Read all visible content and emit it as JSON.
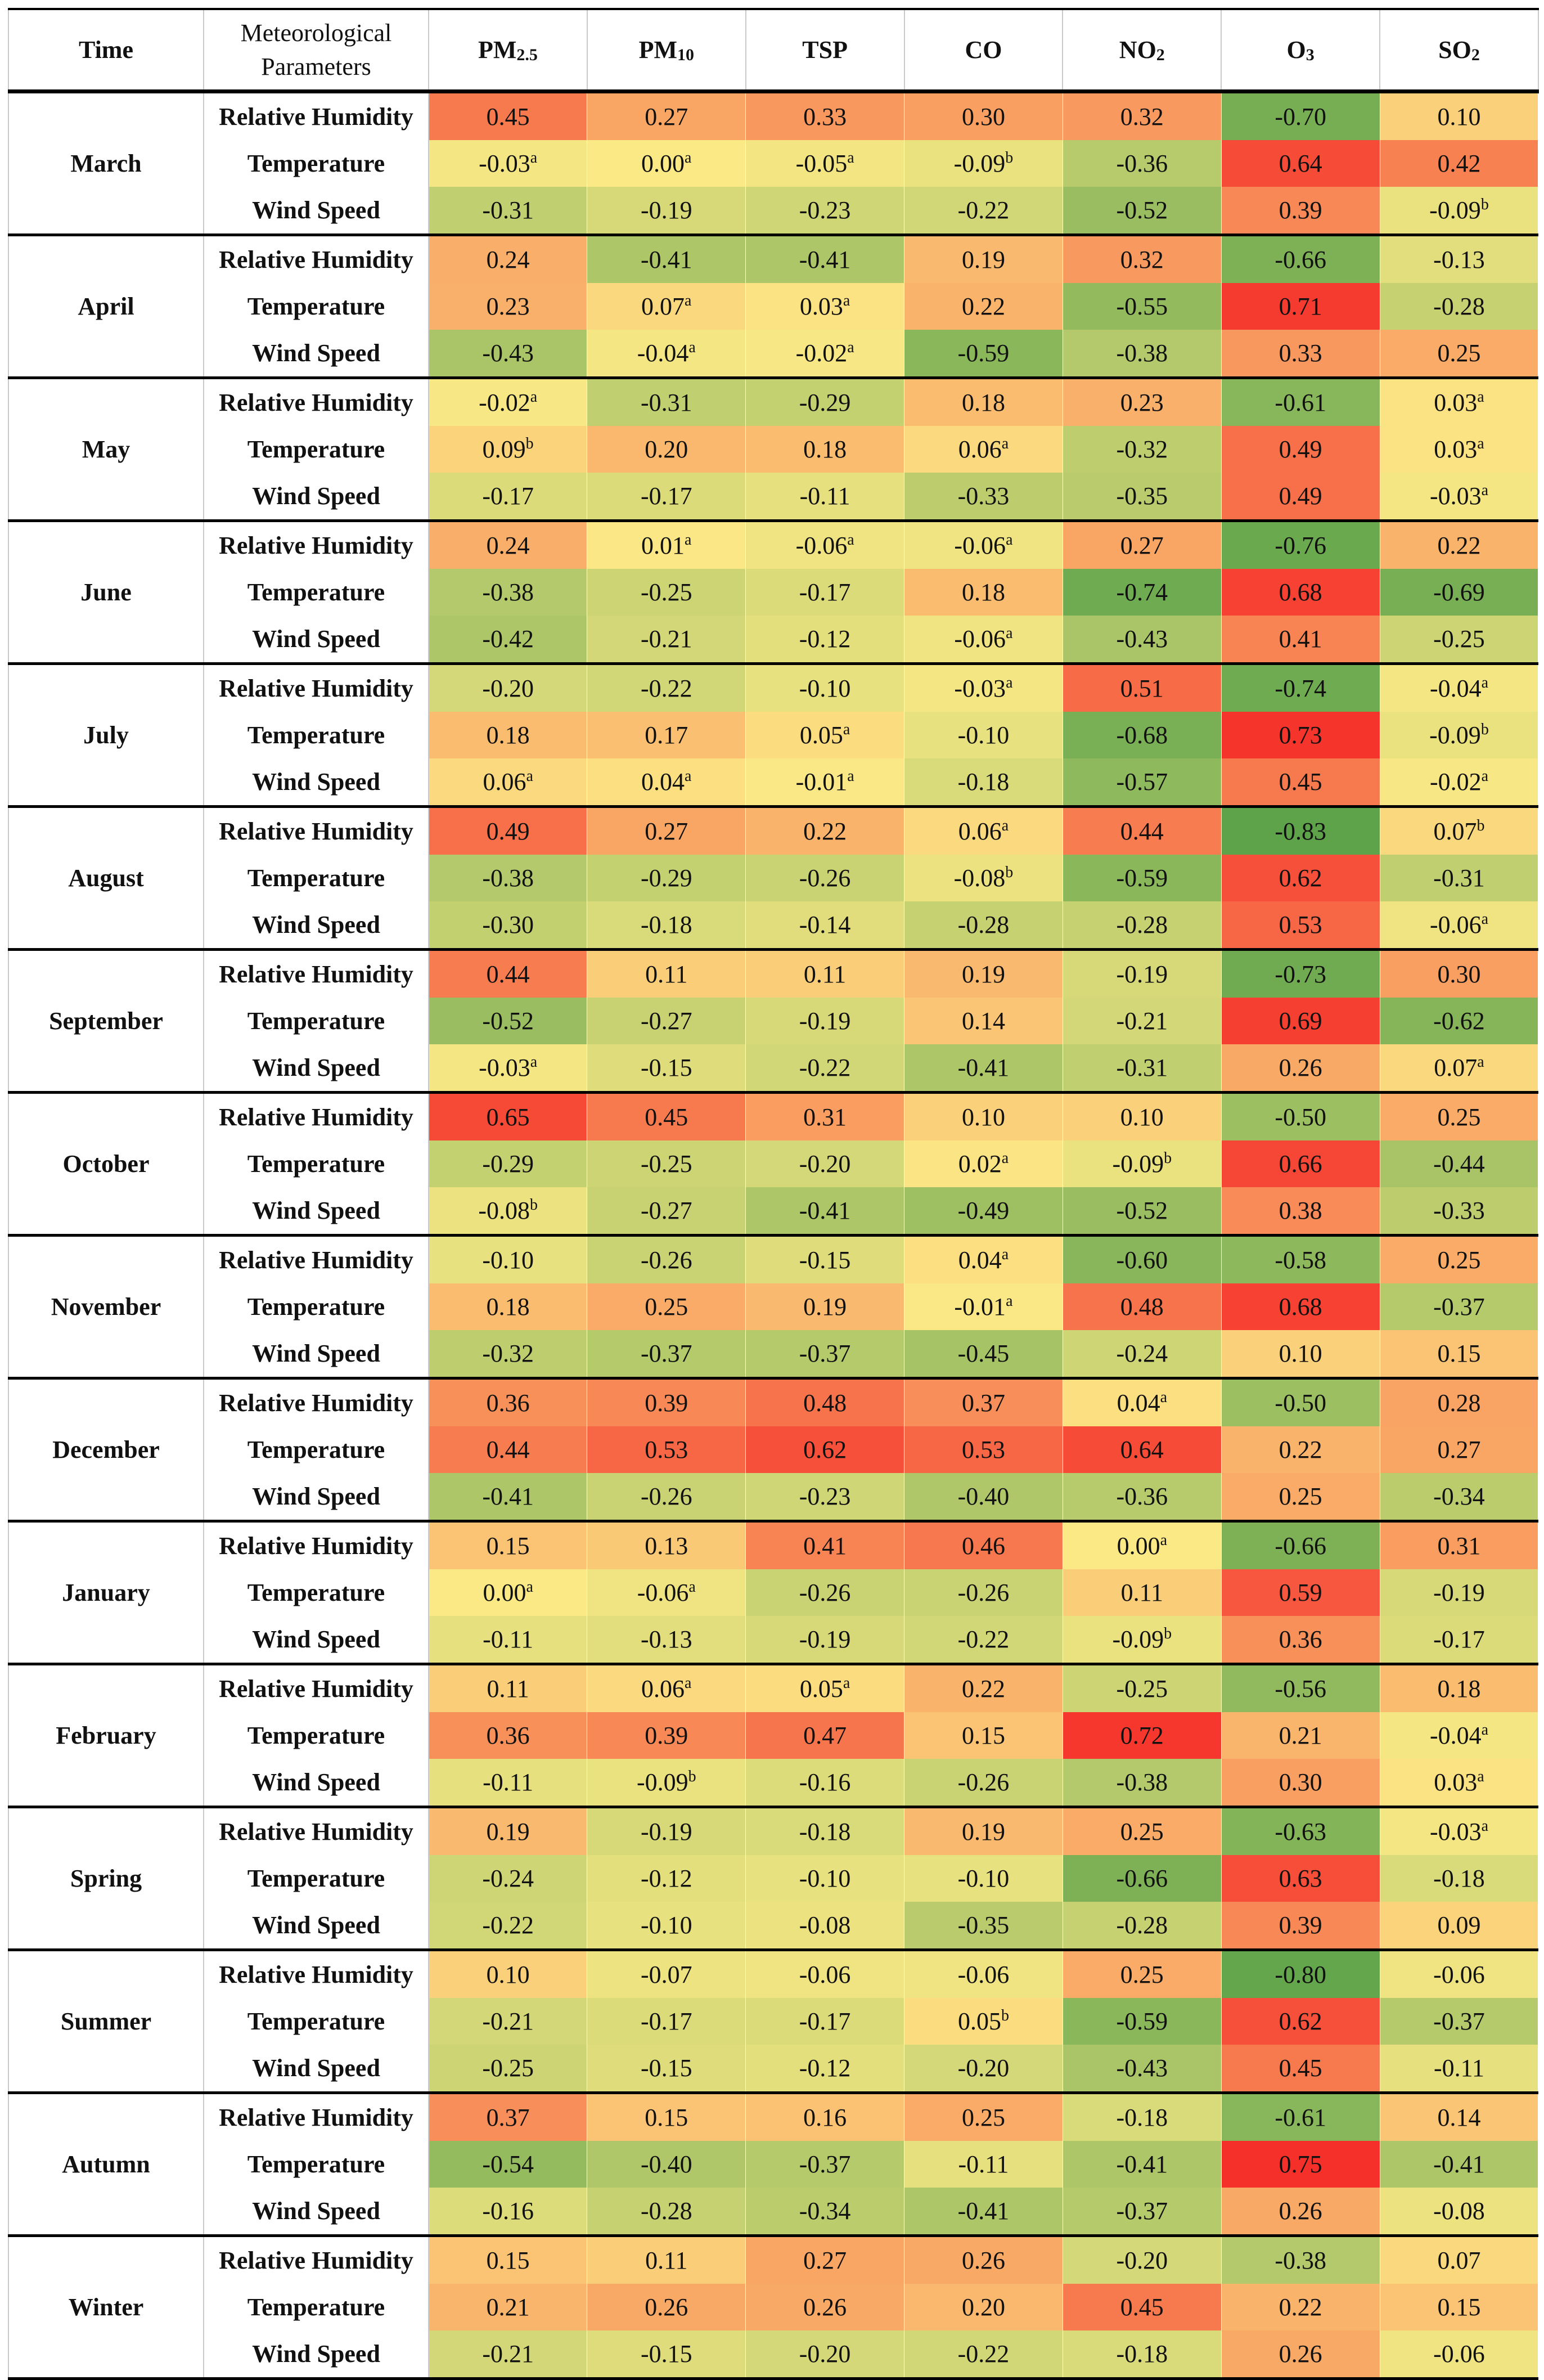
{
  "chart_data": {
    "type": "heatmap",
    "title": "",
    "headers": {
      "time": "Time",
      "parameters": "Meteorological Parameters",
      "pollutants": [
        {
          "base": "PM",
          "sub": "2.5"
        },
        {
          "base": "PM",
          "sub": "10"
        },
        {
          "base": "TSP",
          "sub": ""
        },
        {
          "base": "CO",
          "sub": ""
        },
        {
          "base": "NO",
          "sub": "2"
        },
        {
          "base": "O",
          "sub": "3"
        },
        {
          "base": "SO",
          "sub": "2"
        }
      ]
    },
    "parameters": [
      "Relative Humidity",
      "Temperature",
      "Wind Speed"
    ],
    "color_scale": {
      "min": -0.83,
      "max": 0.75,
      "neg": "#5ea34a",
      "mid": "#fbe986",
      "pos": "#f5302a"
    },
    "groups": [
      {
        "time": "March",
        "rows": [
          [
            "0.45",
            "0.27",
            "0.33",
            "0.30",
            "0.32",
            "-0.70",
            "0.10"
          ],
          [
            "-0.03a",
            "0.00a",
            "-0.05a",
            "-0.09b",
            "-0.36",
            "0.64",
            "0.42"
          ],
          [
            "-0.31",
            "-0.19",
            "-0.23",
            "-0.22",
            "-0.52",
            "0.39",
            "-0.09b"
          ]
        ]
      },
      {
        "time": "April",
        "rows": [
          [
            "0.24",
            "-0.41",
            "-0.41",
            "0.19",
            "0.32",
            "-0.66",
            "-0.13"
          ],
          [
            "0.23",
            "0.07a",
            "0.03a",
            "0.22",
            "-0.55",
            "0.71",
            "-0.28"
          ],
          [
            "-0.43",
            "-0.04a",
            "-0.02a",
            "-0.59",
            "-0.38",
            "0.33",
            "0.25"
          ]
        ]
      },
      {
        "time": "May",
        "rows": [
          [
            "-0.02a",
            "-0.31",
            "-0.29",
            "0.18",
            "0.23",
            "-0.61",
            "0.03a"
          ],
          [
            "0.09b",
            "0.20",
            "0.18",
            "0.06a",
            "-0.32",
            "0.49",
            "0.03a"
          ],
          [
            "-0.17",
            "-0.17",
            "-0.11",
            "-0.33",
            "-0.35",
            "0.49",
            "-0.03a"
          ]
        ]
      },
      {
        "time": "June",
        "rows": [
          [
            "0.24",
            "0.01a",
            "-0.06a",
            "-0.06a",
            "0.27",
            "-0.76",
            "0.22"
          ],
          [
            "-0.38",
            "-0.25",
            "-0.17",
            "0.18",
            "-0.74",
            "0.68",
            "-0.69"
          ],
          [
            "-0.42",
            "-0.21",
            "-0.12",
            "-0.06a",
            "-0.43",
            "0.41",
            "-0.25"
          ]
        ]
      },
      {
        "time": "July",
        "rows": [
          [
            "-0.20",
            "-0.22",
            "-0.10",
            "-0.03a",
            "0.51",
            "-0.74",
            "-0.04a"
          ],
          [
            "0.18",
            "0.17",
            "0.05a",
            "-0.10",
            "-0.68",
            "0.73",
            "-0.09b"
          ],
          [
            "0.06a",
            "0.04a",
            "-0.01a",
            "-0.18",
            "-0.57",
            "0.45",
            "-0.02a"
          ]
        ]
      },
      {
        "time": "August",
        "rows": [
          [
            "0.49",
            "0.27",
            "0.22",
            "0.06a",
            "0.44",
            "-0.83",
            "0.07b"
          ],
          [
            "-0.38",
            "-0.29",
            "-0.26",
            "-0.08b",
            "-0.59",
            "0.62",
            "-0.31"
          ],
          [
            "-0.30",
            "-0.18",
            "-0.14",
            "-0.28",
            "-0.28",
            "0.53",
            "-0.06a"
          ]
        ]
      },
      {
        "time": "September",
        "rows": [
          [
            "0.44",
            "0.11",
            "0.11",
            "0.19",
            "-0.19",
            "-0.73",
            "0.30"
          ],
          [
            "-0.52",
            "-0.27",
            "-0.19",
            "0.14",
            "-0.21",
            "0.69",
            "-0.62"
          ],
          [
            "-0.03a",
            "-0.15",
            "-0.22",
            "-0.41",
            "-0.31",
            "0.26",
            "0.07a"
          ]
        ]
      },
      {
        "time": "October",
        "rows": [
          [
            "0.65",
            "0.45",
            "0.31",
            "0.10",
            "0.10",
            "-0.50",
            "0.25"
          ],
          [
            "-0.29",
            "-0.25",
            "-0.20",
            "0.02a",
            "-0.09b",
            "0.66",
            "-0.44"
          ],
          [
            "-0.08b",
            "-0.27",
            "-0.41",
            "-0.49",
            "-0.52",
            "0.38",
            "-0.33"
          ]
        ]
      },
      {
        "time": "November",
        "rows": [
          [
            "-0.10",
            "-0.26",
            "-0.15",
            "0.04a",
            "-0.60",
            "-0.58",
            "0.25"
          ],
          [
            "0.18",
            "0.25",
            "0.19",
            "-0.01a",
            "0.48",
            "0.68",
            "-0.37"
          ],
          [
            "-0.32",
            "-0.37",
            "-0.37",
            "-0.45",
            "-0.24",
            "0.10",
            "0.15"
          ]
        ]
      },
      {
        "time": "December",
        "rows": [
          [
            "0.36",
            "0.39",
            "0.48",
            "0.37",
            "0.04a",
            "-0.50",
            "0.28"
          ],
          [
            "0.44",
            "0.53",
            "0.62",
            "0.53",
            "0.64",
            "0.22",
            "0.27"
          ],
          [
            "-0.41",
            "-0.26",
            "-0.23",
            "-0.40",
            "-0.36",
            "0.25",
            "-0.34"
          ]
        ]
      },
      {
        "time": "January",
        "rows": [
          [
            "0.15",
            "0.13",
            "0.41",
            "0.46",
            "0.00a",
            "-0.66",
            "0.31"
          ],
          [
            "0.00a",
            "-0.06a",
            "-0.26",
            "-0.26",
            "0.11",
            "0.59",
            "-0.19"
          ],
          [
            "-0.11",
            "-0.13",
            "-0.19",
            "-0.22",
            "-0.09b",
            "0.36",
            "-0.17"
          ]
        ]
      },
      {
        "time": "February",
        "rows": [
          [
            "0.11",
            "0.06a",
            "0.05a",
            "0.22",
            "-0.25",
            "-0.56",
            "0.18"
          ],
          [
            "0.36",
            "0.39",
            "0.47",
            "0.15",
            "0.72",
            "0.21",
            "-0.04a"
          ],
          [
            "-0.11",
            "-0.09b",
            "-0.16",
            "-0.26",
            "-0.38",
            "0.30",
            "0.03a"
          ]
        ]
      },
      {
        "time": "Spring",
        "rows": [
          [
            "0.19",
            "-0.19",
            "-0.18",
            "0.19",
            "0.25",
            "-0.63",
            "-0.03a"
          ],
          [
            "-0.24",
            "-0.12",
            "-0.10",
            "-0.10",
            "-0.66",
            "0.63",
            "-0.18"
          ],
          [
            "-0.22",
            "-0.10",
            "-0.08",
            "-0.35",
            "-0.28",
            "0.39",
            "0.09"
          ]
        ]
      },
      {
        "time": "Summer",
        "rows": [
          [
            "0.10",
            "-0.07",
            "-0.06",
            "-0.06",
            "0.25",
            "-0.80",
            "-0.06"
          ],
          [
            "-0.21",
            "-0.17",
            "-0.17",
            "0.05b",
            "-0.59",
            "0.62",
            "-0.37"
          ],
          [
            "-0.25",
            "-0.15",
            "-0.12",
            "-0.20",
            "-0.43",
            "0.45",
            "-0.11"
          ]
        ]
      },
      {
        "time": "Autumn",
        "rows": [
          [
            "0.37",
            "0.15",
            "0.16",
            "0.25",
            "-0.18",
            "-0.61",
            "0.14"
          ],
          [
            "-0.54",
            "-0.40",
            "-0.37",
            "-0.11",
            "-0.41",
            "0.75",
            "-0.41"
          ],
          [
            "-0.16",
            "-0.28",
            "-0.34",
            "-0.41",
            "-0.37",
            "0.26",
            "-0.08"
          ]
        ]
      },
      {
        "time": "Winter",
        "rows": [
          [
            "0.15",
            "0.11",
            "0.27",
            "0.26",
            "-0.20",
            "-0.38",
            "0.07"
          ],
          [
            "0.21",
            "0.26",
            "0.26",
            "0.20",
            "0.45",
            "0.22",
            "0.15"
          ],
          [
            "-0.21",
            "-0.15",
            "-0.20",
            "-0.22",
            "-0.18",
            "0.26",
            "-0.06"
          ]
        ]
      }
    ]
  }
}
